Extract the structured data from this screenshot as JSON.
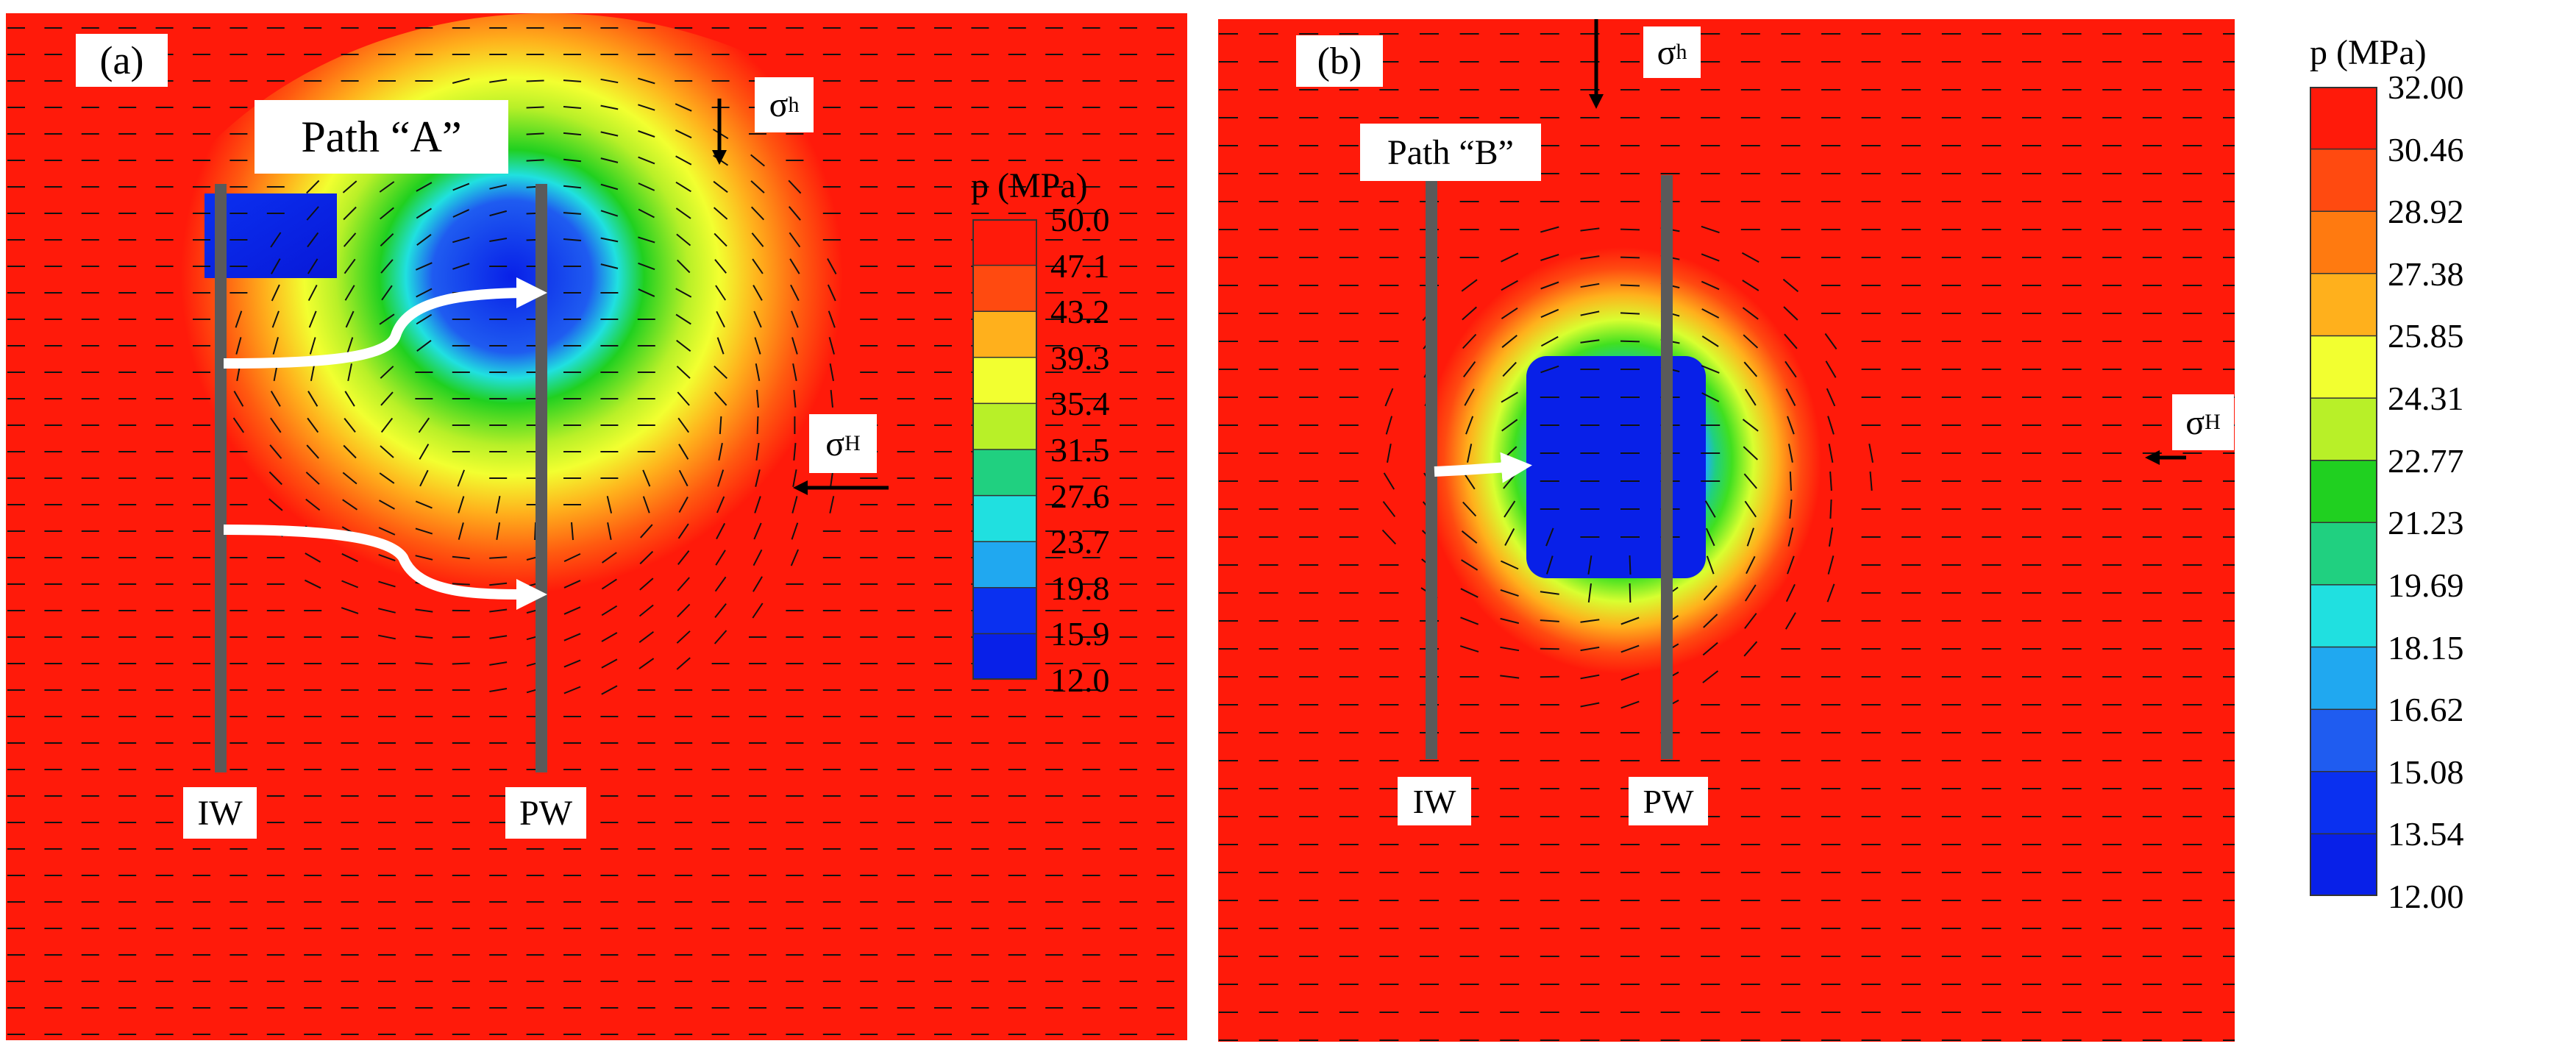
{
  "panels": [
    {
      "id": "a",
      "panel_label": "(a)",
      "path_label": "Path “A”",
      "injection_well_label": "IW",
      "production_well_label": "PW",
      "sigma_h_symbol": "σ",
      "sigma_h_sub": "h",
      "sigma_H_symbol": "σ",
      "sigma_H_sub": "H",
      "legend": {
        "title": "p (MPa)",
        "ticks": [
          "50.0",
          "47.1",
          "43.2",
          "39.3",
          "35.4",
          "31.5",
          "27.6",
          "23.7",
          "19.8",
          "15.9",
          "12.0"
        ]
      }
    },
    {
      "id": "b",
      "panel_label": "(b)",
      "path_label": "Path “B”",
      "injection_well_label": "IW",
      "production_well_label": "PW",
      "sigma_h_symbol": "σ",
      "sigma_h_sub": "h",
      "sigma_H_symbol": "σ",
      "sigma_H_sub": "H",
      "legend": {
        "title": "p (MPa)",
        "ticks": [
          "32.00",
          "30.46",
          "28.92",
          "27.38",
          "25.85",
          "24.31",
          "22.77",
          "21.23",
          "19.69",
          "18.15",
          "16.62",
          "15.08",
          "13.54",
          "12.00"
        ]
      }
    }
  ],
  "colors": {
    "high_pressure": "#ff1a0a",
    "orange": "#ff7a10",
    "yellow": "#f2ff30",
    "green": "#20d020",
    "cyan": "#20e0e0",
    "low_pressure": "#0820e8",
    "well": "#5a5a5a"
  }
}
